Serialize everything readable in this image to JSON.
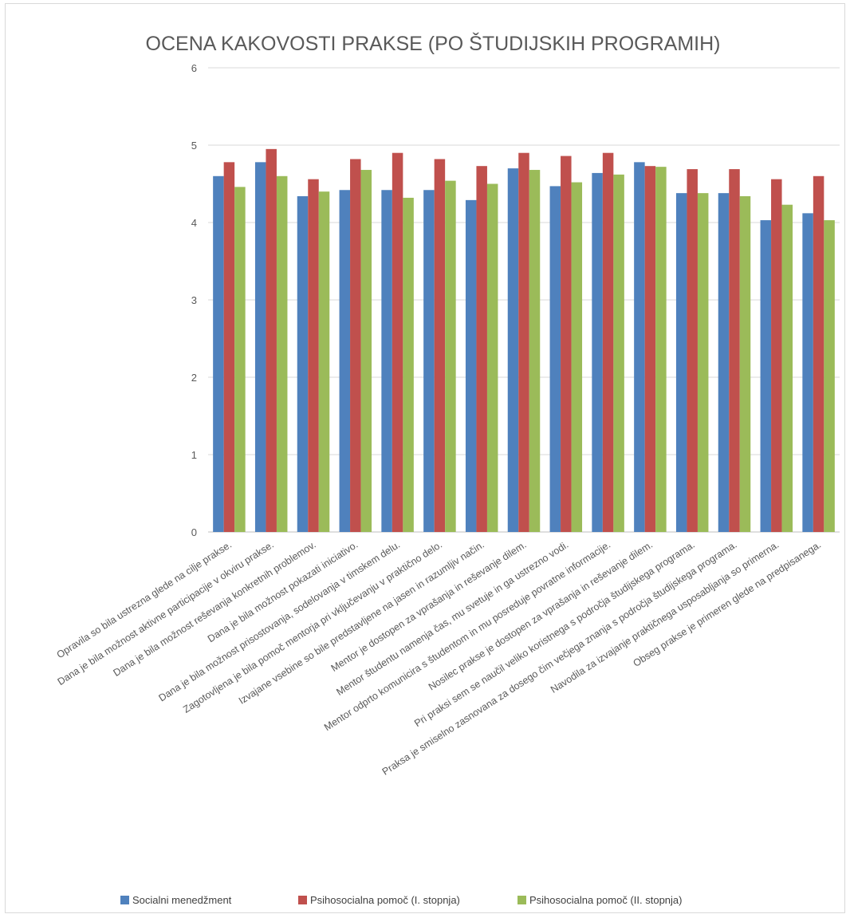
{
  "chart_data": {
    "type": "bar",
    "title": "OCENA KAKOVOSTI PRAKSE (PO ŠTUDIJSKIH PROGRAMIH)",
    "xlabel": "",
    "ylabel": "",
    "ylim": [
      0,
      6
    ],
    "yticks": [
      0,
      1,
      2,
      3,
      4,
      5,
      6
    ],
    "grid": true,
    "legend_position": "bottom",
    "categories": [
      "Opravila so bila ustrezna glede na cilje prakse.",
      "Dana je bila možnost aktivne participacije v okviru prakse.",
      "Dana je bila možnost reševanja konkretnih problemov.",
      "Dana je bila možnost pokazati iniciativo.",
      "Dana je bila možnost prisostovanja, sodelovanja v timskem delu.",
      "Zagotovljena je bila pomoč mentorja pri vključevanju v praktično delo.",
      "Izvajane vsebine so bile predstavljene na jasen in razumljiv način.",
      "Mentor je dostopen za vprašanja in reševanje dilem.",
      "Mentor študentu namenja čas, mu svetuje in ga ustrezno vodi.",
      "Mentor odprto komunicira s študentom in mu posreduje povratne informacije.",
      "Nosilec prakse je dostopen za vprašanja in reševanje dilem.",
      "Pri praksi sem se naučil veliko koristnega s področja študijskega programa.",
      "Praksa je smiselno zasnovana za dosego čim večjega znanja s področja študijskega programa.",
      "Navodila za izvajanje praktičnega usposabljanja so primerna.",
      "Obseg prakse je primeren glede na predpisanega."
    ],
    "series": [
      {
        "name": "Socialni menedžment",
        "color": "#4f81bd",
        "values": [
          4.6,
          4.78,
          4.34,
          4.42,
          4.42,
          4.42,
          4.29,
          4.7,
          4.47,
          4.64,
          4.78,
          4.38,
          4.38,
          4.03,
          4.12
        ]
      },
      {
        "name": "Psihosocialna pomoč (I. stopnja)",
        "color": "#c0504d",
        "values": [
          4.78,
          4.95,
          4.56,
          4.82,
          4.9,
          4.82,
          4.73,
          4.9,
          4.86,
          4.9,
          4.73,
          4.69,
          4.69,
          4.56,
          4.6
        ]
      },
      {
        "name": "Psihosocialna pomoč (II. stopnja)",
        "color": "#9bbb59",
        "values": [
          4.46,
          4.6,
          4.4,
          4.68,
          4.32,
          4.54,
          4.5,
          4.68,
          4.52,
          4.62,
          4.72,
          4.38,
          4.34,
          4.23,
          4.03
        ]
      }
    ]
  }
}
